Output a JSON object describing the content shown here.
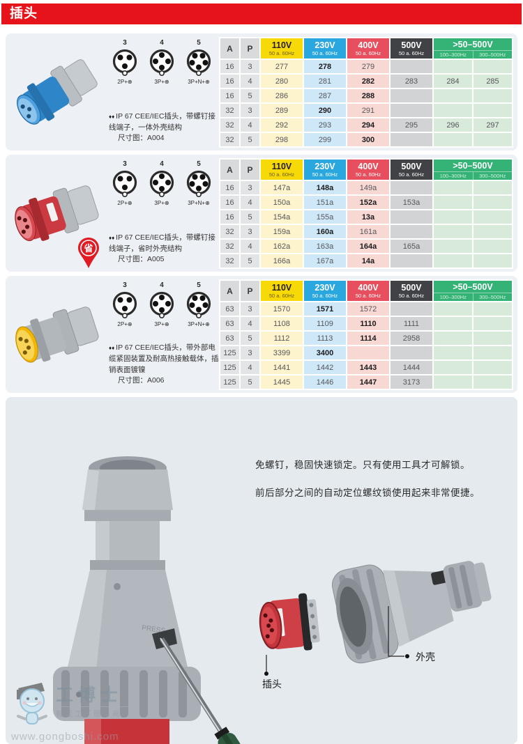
{
  "page_title": "插头",
  "icons": {
    "bullet_drops": "♦♦",
    "badge_label": "省"
  },
  "colors": {
    "header_red": "#e7131a",
    "col_110": "#f8d908",
    "col_230": "#2ba7df",
    "col_400": "#e84f5e",
    "col_500": "#414246",
    "col_green": "#35b376"
  },
  "table_header": {
    "a": "A",
    "p": "P",
    "v110": "110V",
    "v230": "230V",
    "v400": "400V",
    "v500": "500V",
    "sub_hz": "50 a. 60Hz",
    "group": ">50–500V",
    "g1": "100–300Hz",
    "g2": "300–500Hz"
  },
  "pins": [
    {
      "num": "3",
      "label": "2P+⊕"
    },
    {
      "num": "4",
      "label": "3P+⊕"
    },
    {
      "num": "5",
      "label": "3P+N+⊕"
    }
  ],
  "sections": [
    {
      "desc": "IP 67 CEE/IEC插头，带螺钉接线端子，一体外壳结构",
      "dim": "尺寸图：A004",
      "rows": [
        [
          "16",
          "3",
          "277",
          {
            "v": "278",
            "b": 1
          },
          "279",
          "",
          "",
          ""
        ],
        [
          "16",
          "4",
          "280",
          "281",
          {
            "v": "282",
            "b": 1
          },
          "283",
          "284",
          "285"
        ],
        [
          "16",
          "5",
          "286",
          "287",
          {
            "v": "288",
            "b": 1
          },
          "",
          "",
          ""
        ],
        [
          "32",
          "3",
          "289",
          {
            "v": "290",
            "b": 1
          },
          "291",
          "",
          "",
          ""
        ],
        [
          "32",
          "4",
          "292",
          "293",
          {
            "v": "294",
            "b": 1
          },
          "295",
          "296",
          "297"
        ],
        [
          "32",
          "5",
          "298",
          "299",
          {
            "v": "300",
            "b": 1
          },
          "",
          "",
          ""
        ]
      ]
    },
    {
      "desc": "IP 67 CEE/IEC插头，带螺钉接线端子，省时外壳结构",
      "dim": "尺寸图：A005",
      "rows": [
        [
          "16",
          "3",
          "147a",
          {
            "v": "148a",
            "b": 1
          },
          "149a",
          "",
          "",
          ""
        ],
        [
          "16",
          "4",
          "150a",
          "151a",
          {
            "v": "152a",
            "b": 1
          },
          "153a",
          "",
          ""
        ],
        [
          "16",
          "5",
          "154a",
          "155a",
          {
            "v": "13a",
            "b": 1
          },
          "",
          "",
          ""
        ],
        [
          "32",
          "3",
          "159a",
          {
            "v": "160a",
            "b": 1
          },
          "161a",
          "",
          "",
          ""
        ],
        [
          "32",
          "4",
          "162a",
          "163a",
          {
            "v": "164a",
            "b": 1
          },
          "165a",
          "",
          ""
        ],
        [
          "32",
          "5",
          "166a",
          "167a",
          {
            "v": "14a",
            "b": 1
          },
          "",
          "",
          ""
        ]
      ]
    },
    {
      "desc": "IP 67 CEE/IEC插头，带外部电缆紧固装置及耐高热接触载体，插销表面镀镍",
      "dim": "尺寸图：A006",
      "rows": [
        [
          "63",
          "3",
          "1570",
          {
            "v": "1571",
            "b": 1
          },
          "1572",
          "",
          "",
          ""
        ],
        [
          "63",
          "4",
          "1108",
          "1109",
          {
            "v": "1110",
            "b": 1
          },
          "1111",
          "",
          ""
        ],
        [
          "63",
          "5",
          "1112",
          "1113",
          {
            "v": "1114",
            "b": 1
          },
          "2958",
          "",
          ""
        ],
        [
          "125",
          "3",
          "3399",
          {
            "v": "3400",
            "b": 1
          },
          "",
          "",
          "",
          ""
        ],
        [
          "125",
          "4",
          "1441",
          "1442",
          {
            "v": "1443",
            "b": 1
          },
          "1444",
          "",
          ""
        ],
        [
          "125",
          "5",
          "1445",
          "1446",
          {
            "v": "1447",
            "b": 1
          },
          "3173",
          "",
          ""
        ]
      ]
    }
  ],
  "bottom": {
    "line1": "免螺钉，稳固快速锁定。只有使用工具才可解锁。",
    "line2": "前后部分之间的自动定位螺纹锁使用起来非常便捷。",
    "label_plug": "插头",
    "label_shell": "外壳",
    "embossed": "PRESS"
  },
  "watermark": {
    "name": "工博士",
    "reg": "®",
    "tagline": "智能工厂服务商",
    "url": "www.gongboshi.com"
  }
}
